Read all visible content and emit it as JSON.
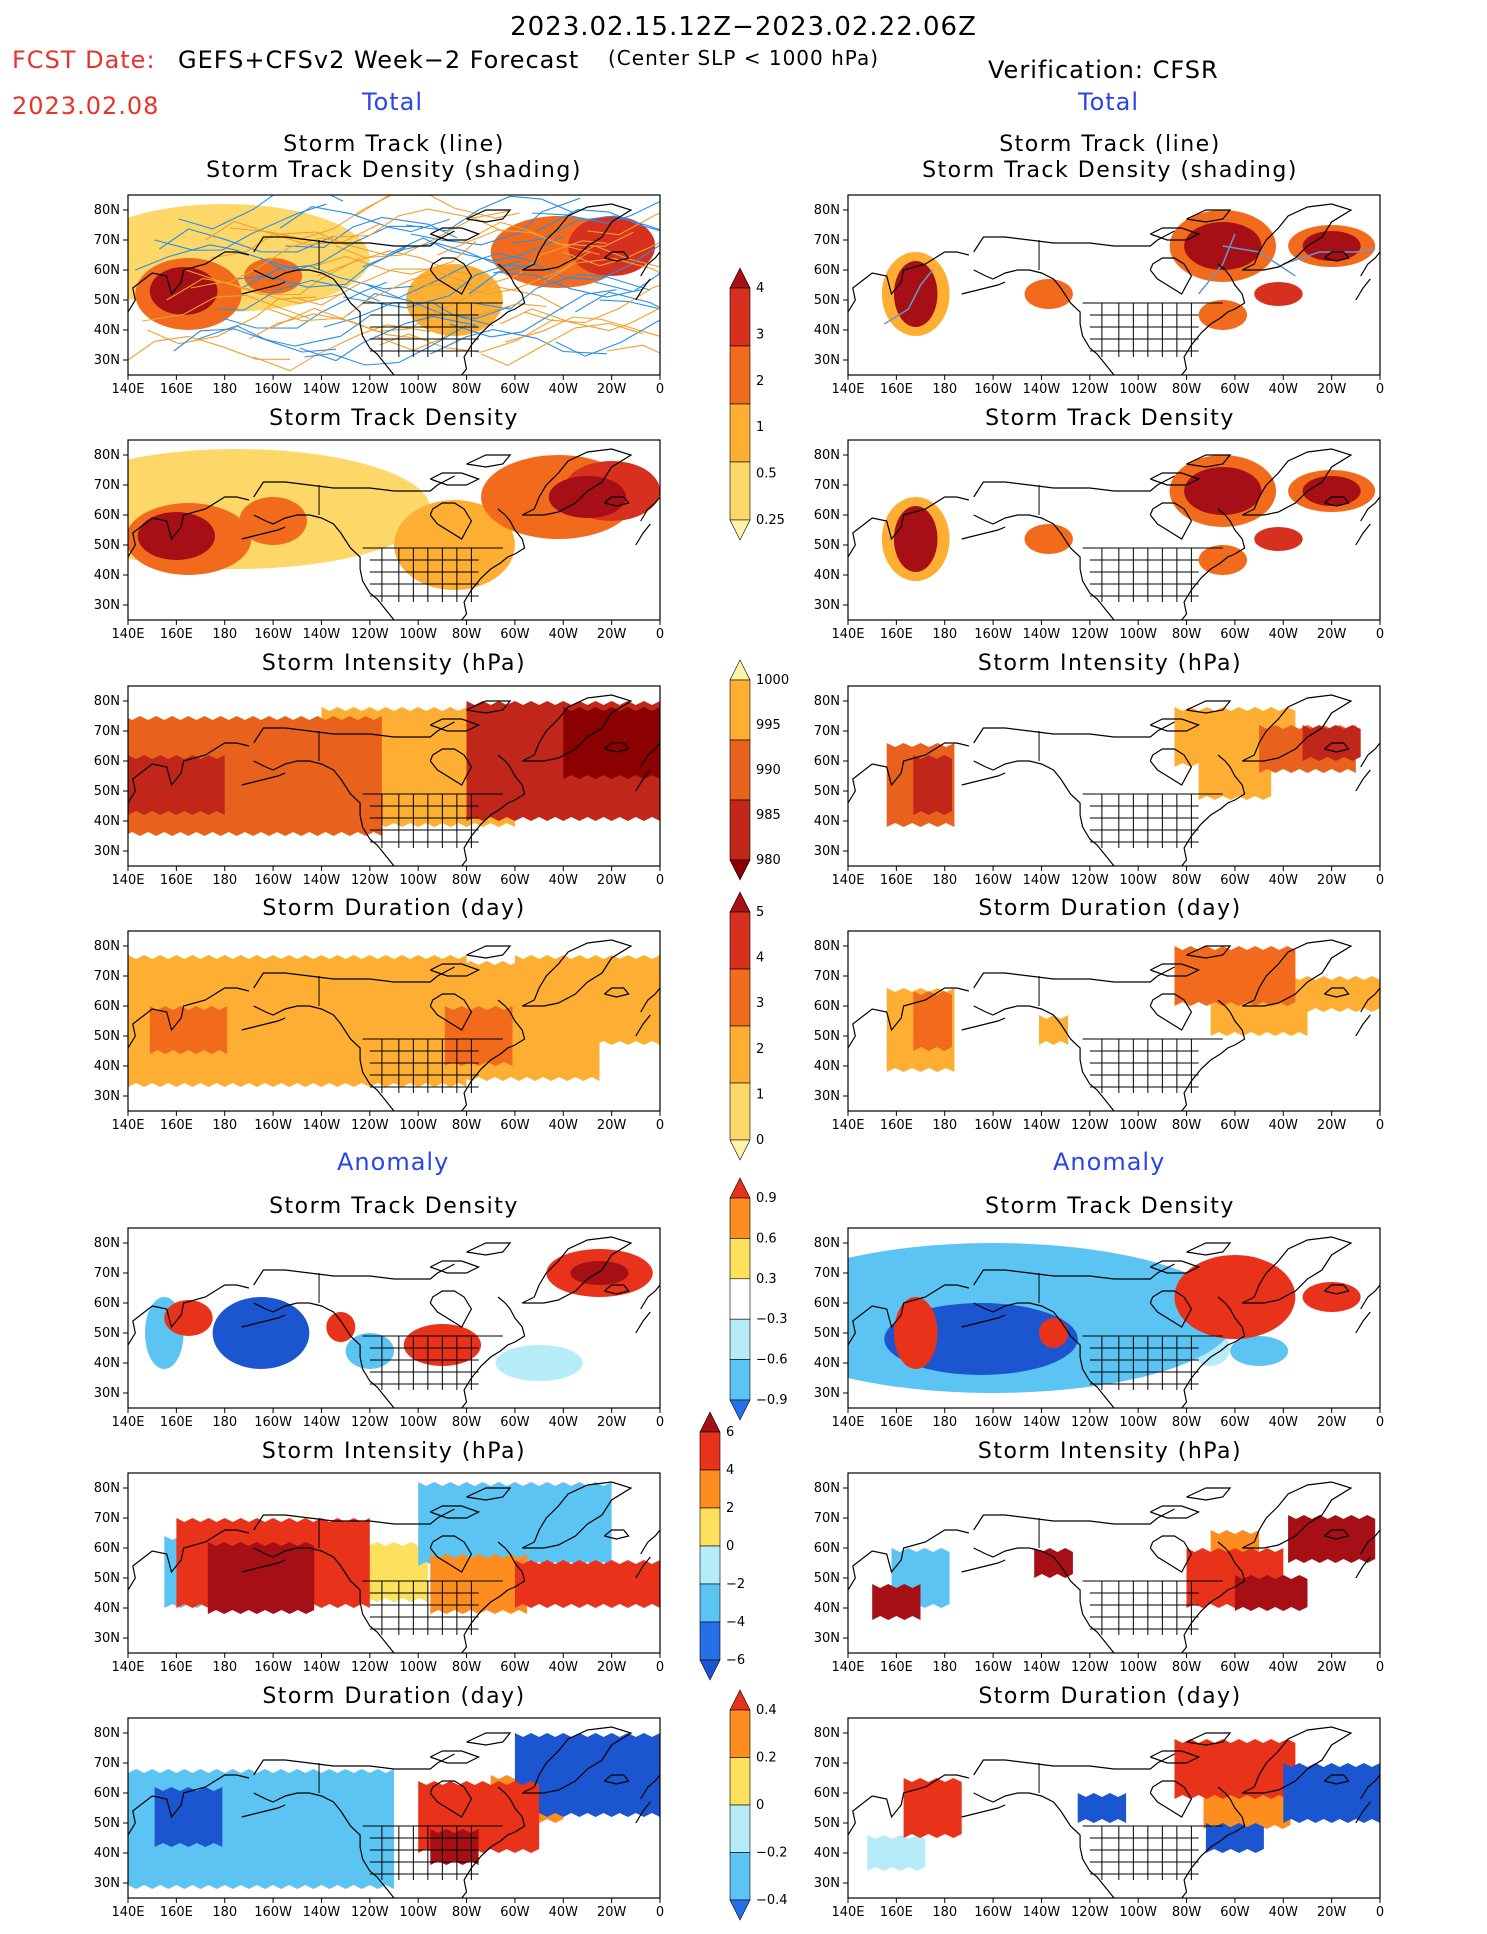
{
  "header": {
    "date_range": "2023.02.15.12Z−2023.02.22.06Z",
    "fcst_date_label": "FCST Date:",
    "fcst_date_value": "2023.02.08",
    "forecast_product": "GEFS+CFSv2 Week−2 Forecast",
    "threshold": "(Center SLP < 1000 hPa)",
    "verification": "Verification: CFSR"
  },
  "sections": {
    "total_left": "Total",
    "total_right": "Total",
    "anomaly_left": "Anomaly",
    "anomaly_right": "Anomaly"
  },
  "panel_titles": {
    "track_line": "Storm Track (line)",
    "track_density_shading": "Storm Track Density (shading)",
    "track_density": "Storm Track Density",
    "intensity": "Storm Intensity (hPa)",
    "duration": "Storm Duration (day)"
  },
  "axes": {
    "lon_ticks": [
      "140E",
      "160E",
      "180",
      "160W",
      "140W",
      "120W",
      "100W",
      "80W",
      "60W",
      "40W",
      "20W",
      "0"
    ],
    "lat_ticks": [
      "80N",
      "70N",
      "60N",
      "50N",
      "40N",
      "30N"
    ]
  },
  "colorbars": {
    "track_density": {
      "labels": [
        "4",
        "3",
        "2",
        "1",
        "0.5",
        "0.25"
      ],
      "colors": [
        "#a50f15",
        "#d7301f",
        "#f26b1d",
        "#fdae33",
        "#fdd868",
        "#fff3a8"
      ]
    },
    "intensity": {
      "labels": [
        "1000",
        "995",
        "990",
        "985",
        "980"
      ],
      "colors": [
        "#fff3a8",
        "#fdae33",
        "#e8621e",
        "#c1261a",
        "#8b0000"
      ]
    },
    "duration": {
      "labels": [
        "5",
        "4",
        "3",
        "2",
        "1",
        "0"
      ],
      "colors": [
        "#a50f15",
        "#d7301f",
        "#f26b1d",
        "#fdae33",
        "#fdd868",
        "#fff3a8"
      ]
    },
    "anom_density": {
      "labels": [
        "0.9",
        "0.6",
        "0.3",
        "−0.3",
        "−0.6",
        "−0.9"
      ],
      "colors": [
        "#e8321a",
        "#fd8d1e",
        "#fde05c",
        "#ffffff",
        "#b5ecf8",
        "#5cc4f2",
        "#2570e6"
      ]
    },
    "anom_intensity": {
      "labels": [
        "6",
        "4",
        "2",
        "0",
        "−2",
        "−4",
        "−6"
      ],
      "colors": [
        "#a50f15",
        "#e8321a",
        "#fd8d1e",
        "#fde05c",
        "#b5ecf8",
        "#5cc4f2",
        "#2570e6",
        "#1c55d0"
      ]
    },
    "anom_duration": {
      "labels": [
        "0.4",
        "0.2",
        "0",
        "−0.2",
        "−0.4"
      ],
      "colors": [
        "#e8321a",
        "#fd8d1e",
        "#fde05c",
        "#b5ecf8",
        "#5cc4f2",
        "#2570e6"
      ]
    }
  },
  "colors": {
    "ocean_bg": "#ffffff",
    "coast": "#000000",
    "track_line_forecast": [
      "#f0a030",
      "#2a8fe6"
    ],
    "track_line_verif": "#6c96c8"
  },
  "panels_left": [
    {
      "key": "lt1",
      "title_keys": [
        "track_line",
        "track_density_shading"
      ],
      "kind": "track_multi"
    },
    {
      "key": "lt2",
      "title_keys": [
        "track_density"
      ],
      "kind": "density_forecast"
    },
    {
      "key": "lt3",
      "title_keys": [
        "intensity"
      ],
      "kind": "intensity_forecast"
    },
    {
      "key": "lt4",
      "title_keys": [
        "duration"
      ],
      "kind": "duration_forecast"
    },
    {
      "key": "la1",
      "title_keys": [
        "track_density"
      ],
      "kind": "anom_density_forecast"
    },
    {
      "key": "la2",
      "title_keys": [
        "intensity"
      ],
      "kind": "anom_intensity_forecast"
    },
    {
      "key": "la3",
      "title_keys": [
        "duration"
      ],
      "kind": "anom_duration_forecast"
    }
  ]
}
